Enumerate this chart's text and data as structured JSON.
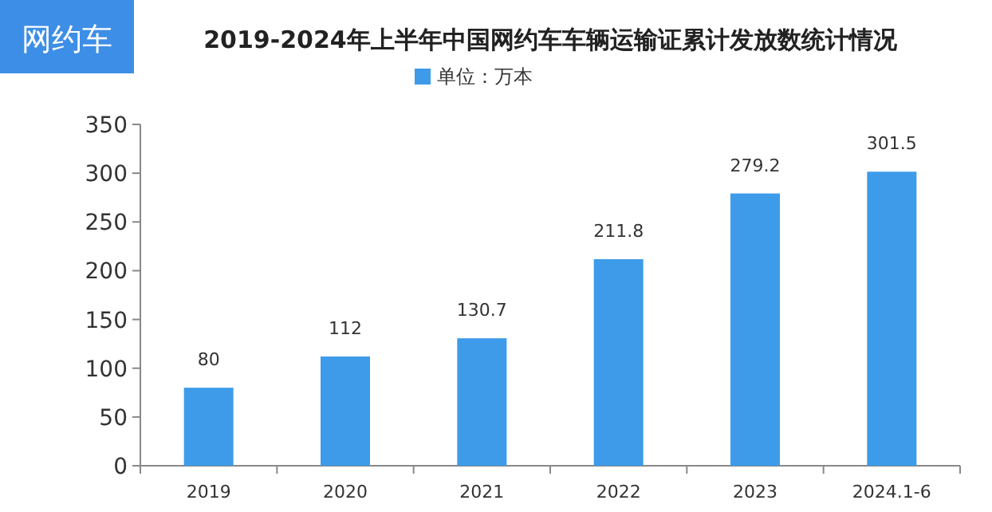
{
  "chart_data": {
    "type": "bar",
    "title": "2019-2024年上半年中国网约车车辆运输证累计发放数统计情况",
    "annotations": [
      "网约车"
    ],
    "categories": [
      "2019",
      "2020",
      "2021",
      "2022",
      "2023",
      "2024.1-6"
    ],
    "series": [
      {
        "name": "单位：万本",
        "color": "#3d9be9",
        "values": [
          80,
          112,
          130.7,
          211.8,
          279.2,
          301.5
        ]
      }
    ],
    "ylim": [
      0,
      350
    ],
    "yticks": [
      0,
      50,
      100,
      150,
      200,
      250,
      300,
      350
    ],
    "data_labels": true,
    "legend": "top"
  }
}
